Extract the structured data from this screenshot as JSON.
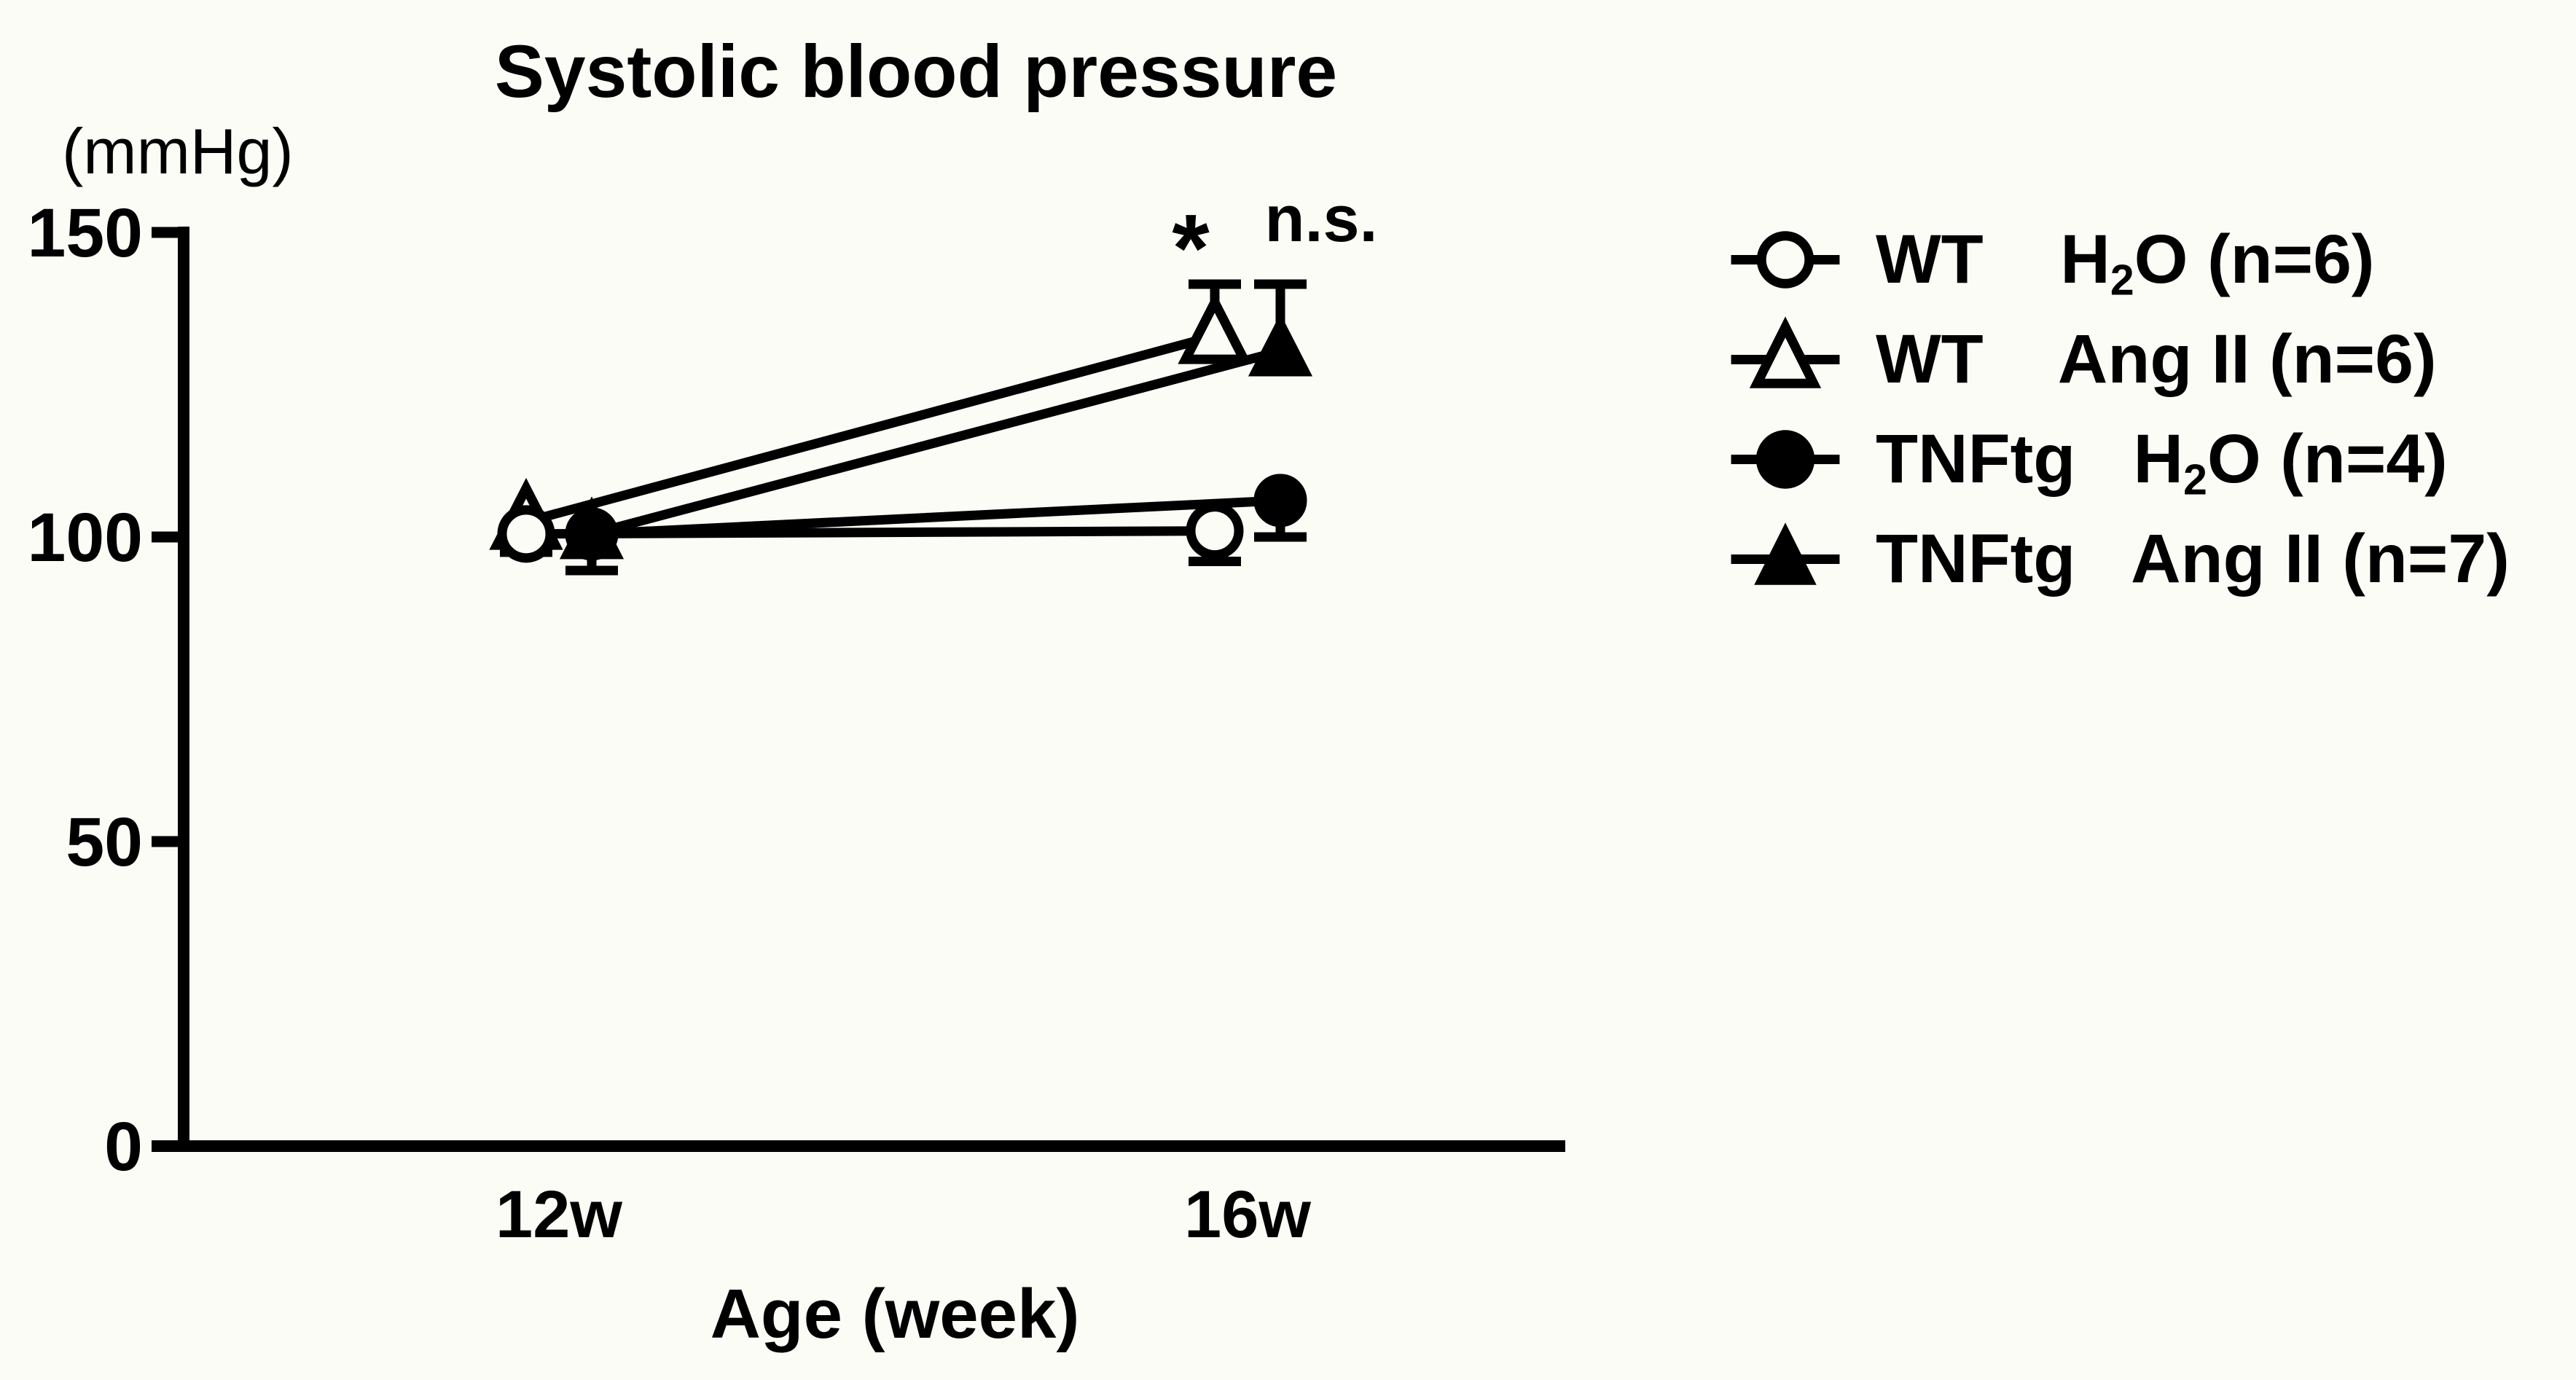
{
  "page": {
    "background": "#fcfcf6",
    "ink_color": "#000000"
  },
  "chart_data": {
    "type": "line",
    "title": "Systolic blood pressure",
    "y_axis_unit": "(mmHg)",
    "xlabel": "Age (week)",
    "ylabel": "",
    "categories": [
      "12w",
      "16w"
    ],
    "ylim": [
      0,
      150
    ],
    "yticks": [
      0,
      50,
      100,
      150
    ],
    "grid": false,
    "legend_position": "right-of-plot",
    "series": [
      {
        "id": "wt-h2o",
        "name": "WT H2O (n=6)",
        "group": "WT",
        "marker": "circle",
        "fill": "open",
        "values": [
          100.5,
          101
        ],
        "err_down": [
          3,
          5
        ],
        "err_up": [
          0,
          0
        ],
        "legend_parts": [
          [
            "WT    H",
            false
          ],
          [
            "2",
            true
          ],
          [
            "O (n=6)",
            false
          ]
        ]
      },
      {
        "id": "wt-angii",
        "name": "WT Ang II (n=6)",
        "group": "WT",
        "marker": "triangle",
        "fill": "open",
        "values": [
          102.5,
          133
        ],
        "err_down": [
          0,
          0
        ],
        "err_up": [
          0,
          8.5
        ],
        "legend_parts": [
          [
            "WT    Ang II (n=6)",
            false
          ]
        ]
      },
      {
        "id": "tnftg-h2o",
        "name": "TNFtg H2O (n=4)",
        "group": "TNFtg",
        "marker": "circle",
        "fill": "solid",
        "values": [
          100.5,
          106
        ],
        "err_down": [
          6,
          6
        ],
        "err_up": [
          0,
          0
        ],
        "legend_parts": [
          [
            "TNFtg   H",
            false
          ],
          [
            "2",
            true
          ],
          [
            "O (n=4)",
            false
          ]
        ]
      },
      {
        "id": "tnftg-angii",
        "name": "TNFtg Ang II (n=7)",
        "group": "TNFtg",
        "marker": "triangle",
        "fill": "solid",
        "values": [
          100.5,
          130.5
        ],
        "err_down": [
          0,
          0
        ],
        "err_up": [
          0,
          11
        ],
        "legend_parts": [
          [
            "TNFtg   Ang II (n=7)",
            false
          ]
        ]
      }
    ],
    "annotations": [
      {
        "text": "*",
        "meaning": "significant",
        "at": "WT Ang II @ 16w"
      },
      {
        "text": "n.s.",
        "meaning": "not significant",
        "at": "TNFtg Ang II @ 16w"
      }
    ]
  }
}
